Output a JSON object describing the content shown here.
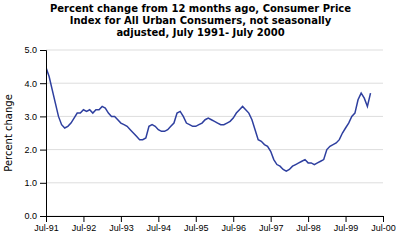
{
  "chart_data": {
    "type": "line",
    "title": "Percent change from 12 months ago, Consumer Price\nIndex for All Urban Consumers, not seasonally\nadjusted, July 1991- July 2000",
    "y_label": "Percent change",
    "color": "#2e3f9f",
    "grid": true,
    "categories": [
      "Jul-91",
      null,
      null,
      null,
      null,
      null,
      null,
      null,
      null,
      null,
      null,
      null,
      "Jul-92",
      null,
      null,
      null,
      null,
      null,
      null,
      null,
      null,
      null,
      null,
      null,
      "Jul-93",
      null,
      null,
      null,
      null,
      null,
      null,
      null,
      null,
      null,
      null,
      null,
      "Jul-94",
      null,
      null,
      null,
      null,
      null,
      null,
      null,
      null,
      null,
      null,
      null,
      "Jul-95",
      null,
      null,
      null,
      null,
      null,
      null,
      null,
      null,
      null,
      null,
      null,
      "Jul-96",
      null,
      null,
      null,
      null,
      null,
      null,
      null,
      null,
      null,
      null,
      null,
      "Jul-97",
      null,
      null,
      null,
      null,
      null,
      null,
      null,
      null,
      null,
      null,
      null,
      "Jul-98",
      null,
      null,
      null,
      null,
      null,
      null,
      null,
      null,
      null,
      null,
      null,
      "Jul-99",
      null,
      null,
      null,
      null,
      null,
      null,
      null,
      null,
      null,
      null,
      null,
      "Jul-00"
    ],
    "values": [
      4.47,
      4.2,
      3.8,
      3.4,
      3.0,
      2.75,
      2.65,
      2.7,
      2.8,
      2.95,
      3.1,
      3.1,
      3.2,
      3.15,
      3.2,
      3.1,
      3.2,
      3.2,
      3.3,
      3.25,
      3.1,
      3.0,
      3.0,
      2.9,
      2.8,
      2.75,
      2.7,
      2.6,
      2.5,
      2.4,
      2.3,
      2.3,
      2.35,
      2.7,
      2.75,
      2.7,
      2.6,
      2.55,
      2.55,
      2.6,
      2.7,
      2.8,
      3.1,
      3.15,
      3.0,
      2.8,
      2.75,
      2.7,
      2.7,
      2.75,
      2.8,
      2.9,
      2.95,
      2.9,
      2.85,
      2.8,
      2.75,
      2.75,
      2.8,
      2.85,
      2.95,
      3.1,
      3.2,
      3.3,
      3.2,
      3.1,
      2.9,
      2.6,
      2.3,
      2.25,
      2.15,
      2.1,
      1.95,
      1.7,
      1.55,
      1.5,
      1.4,
      1.35,
      1.4,
      1.5,
      1.55,
      1.6,
      1.65,
      1.7,
      1.6,
      1.6,
      1.55,
      1.6,
      1.65,
      1.7,
      2.0,
      2.1,
      2.15,
      2.2,
      2.3,
      2.5,
      2.65,
      2.8,
      3.0,
      3.1,
      3.5,
      3.7,
      3.55,
      3.3,
      3.7,
      null,
      null,
      null,
      null
    ],
    "ylim": [
      0.0,
      5.0
    ],
    "yticks": [
      {
        "value": 0.0,
        "label": "0.0"
      },
      {
        "value": 1.0,
        "label": "1.0"
      },
      {
        "value": 2.0,
        "label": "2.0"
      },
      {
        "value": 3.0,
        "label": "3.0"
      },
      {
        "value": 4.0,
        "label": "4.0"
      },
      {
        "value": 5.0,
        "label": "5.0"
      }
    ]
  }
}
